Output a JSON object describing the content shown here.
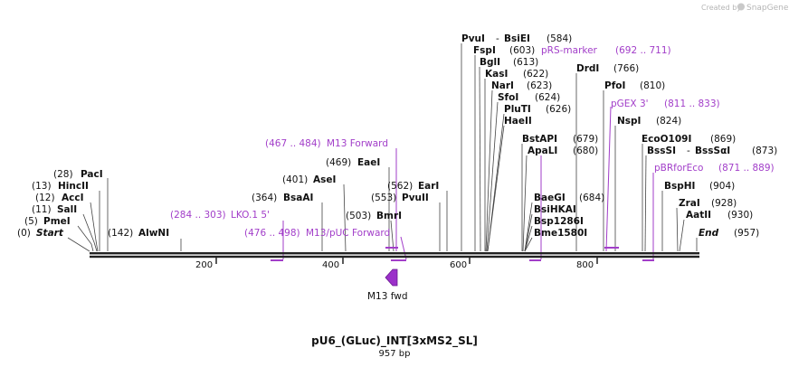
{
  "branding": {
    "created_by": "Created by",
    "app_name": "SnapGene"
  },
  "plasmid": {
    "name": "pU6_(GLuc)_INT[3xMS2_SL]",
    "size_label": "957 bp"
  },
  "ruler": {
    "ticks": [
      "200",
      "400",
      "600",
      "800"
    ]
  },
  "sites_left": [
    {
      "pos": "(28)",
      "name": "PacI"
    },
    {
      "pos": "(13)",
      "name": "HincII"
    },
    {
      "pos": "(12)",
      "name": "AccI"
    },
    {
      "pos": "(11)",
      "name": "SalI"
    },
    {
      "pos": "(5)",
      "name": "PmeI"
    },
    {
      "pos": "(0)",
      "name": "Start"
    }
  ],
  "sites_pos_first": [
    {
      "pos": "(142)",
      "name": "AlwNI"
    },
    {
      "pos": "(401)",
      "name": "AseI"
    },
    {
      "pos": "(469)",
      "name": "EaeI"
    },
    {
      "pos": "(364)",
      "name": "BsaAI"
    },
    {
      "pos": "(562)",
      "name": "EarI"
    },
    {
      "pos": "(553)",
      "name": "PvuII"
    },
    {
      "pos": "(503)",
      "name": "BmrI"
    }
  ],
  "sites_name_first": [
    {
      "name": "PvuI",
      "sep": "-",
      "name2": "BsiEI",
      "pos": "(584)"
    },
    {
      "name": "FspI",
      "pos": "(603)"
    },
    {
      "name": "BglI",
      "pos": "(613)"
    },
    {
      "name": "KasI",
      "pos": "(622)"
    },
    {
      "name": "NarI",
      "pos": "(623)"
    },
    {
      "name": "SfoI",
      "pos": "(624)"
    },
    {
      "name": "PluTI",
      "pos": "(626)"
    },
    {
      "name": "HaeII"
    },
    {
      "name": "BstAPI",
      "pos": "(679)"
    },
    {
      "name": "ApaLI",
      "pos": "(680)"
    },
    {
      "name": "BaeGI",
      "pos": "(684)"
    },
    {
      "name": "BsiHKAI"
    },
    {
      "name": "Bsp1286I"
    },
    {
      "name": "Bme1580I"
    },
    {
      "name": "DrdI",
      "pos": "(766)"
    },
    {
      "name": "PfoI",
      "pos": "(810)"
    },
    {
      "name": "NspI",
      "pos": "(824)"
    },
    {
      "name": "EcoO109I",
      "pos": "(869)"
    },
    {
      "name": "BssSI",
      "sep": "-",
      "name2": "BssSαI",
      "pos": "(873)"
    },
    {
      "name": "BspHI",
      "pos": "(904)"
    },
    {
      "name": "ZraI",
      "pos": "(928)"
    },
    {
      "name": "AatII",
      "pos": "(930)"
    },
    {
      "name": "End",
      "pos": "(957)"
    }
  ],
  "primers": [
    {
      "range": "(467 .. 484)",
      "name": "M13 Forward"
    },
    {
      "range": "(284 .. 303)",
      "name": "LKO.1 5'"
    },
    {
      "range": "(476 .. 498)",
      "name": "M13/pUC Forward"
    },
    {
      "name": "pRS-marker",
      "range": "(692 .. 711)"
    },
    {
      "name": "pGEX 3'",
      "range": "(811 .. 833)"
    },
    {
      "name": "pBRforEco",
      "range": "(871 .. 889)"
    }
  ],
  "features": [
    {
      "name": "M13 fwd",
      "color": "#9b30c9"
    }
  ],
  "colors": {
    "primer": "#a23ec9",
    "feature": "#9b30c9",
    "backbone": "#222222"
  }
}
